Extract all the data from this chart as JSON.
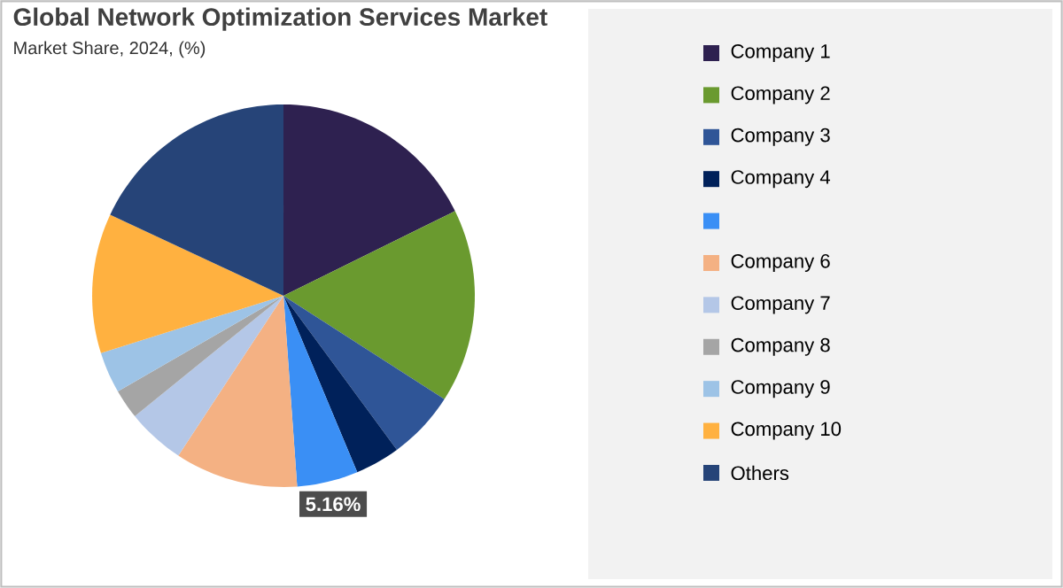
{
  "chart_data": {
    "type": "pie",
    "title": "Global Network Optimization Services Market",
    "subtitle": "Market Share, 2024, (%)",
    "categories": [
      "Company 1",
      "Company 2",
      "Company 3",
      "Company 4",
      null,
      "Company 6",
      "Company 7",
      "Company 8",
      "Company 9",
      "Company 10",
      "Others"
    ],
    "values": [
      17.7,
      16.4,
      5.8,
      3.8,
      5.16,
      10.4,
      4.9,
      2.5,
      3.5,
      11.8,
      18.04
    ],
    "colors": [
      "#2e2150",
      "#6a9a2f",
      "#2f5597",
      "#00215a",
      "#3a8ff5",
      "#f4b183",
      "#b4c7e7",
      "#a5a5a5",
      "#9dc3e6",
      "#ffb140",
      "#264478"
    ],
    "value_labels": [
      null,
      null,
      null,
      null,
      "5.16%",
      null,
      null,
      null,
      null,
      null,
      null
    ],
    "legend": "right"
  }
}
